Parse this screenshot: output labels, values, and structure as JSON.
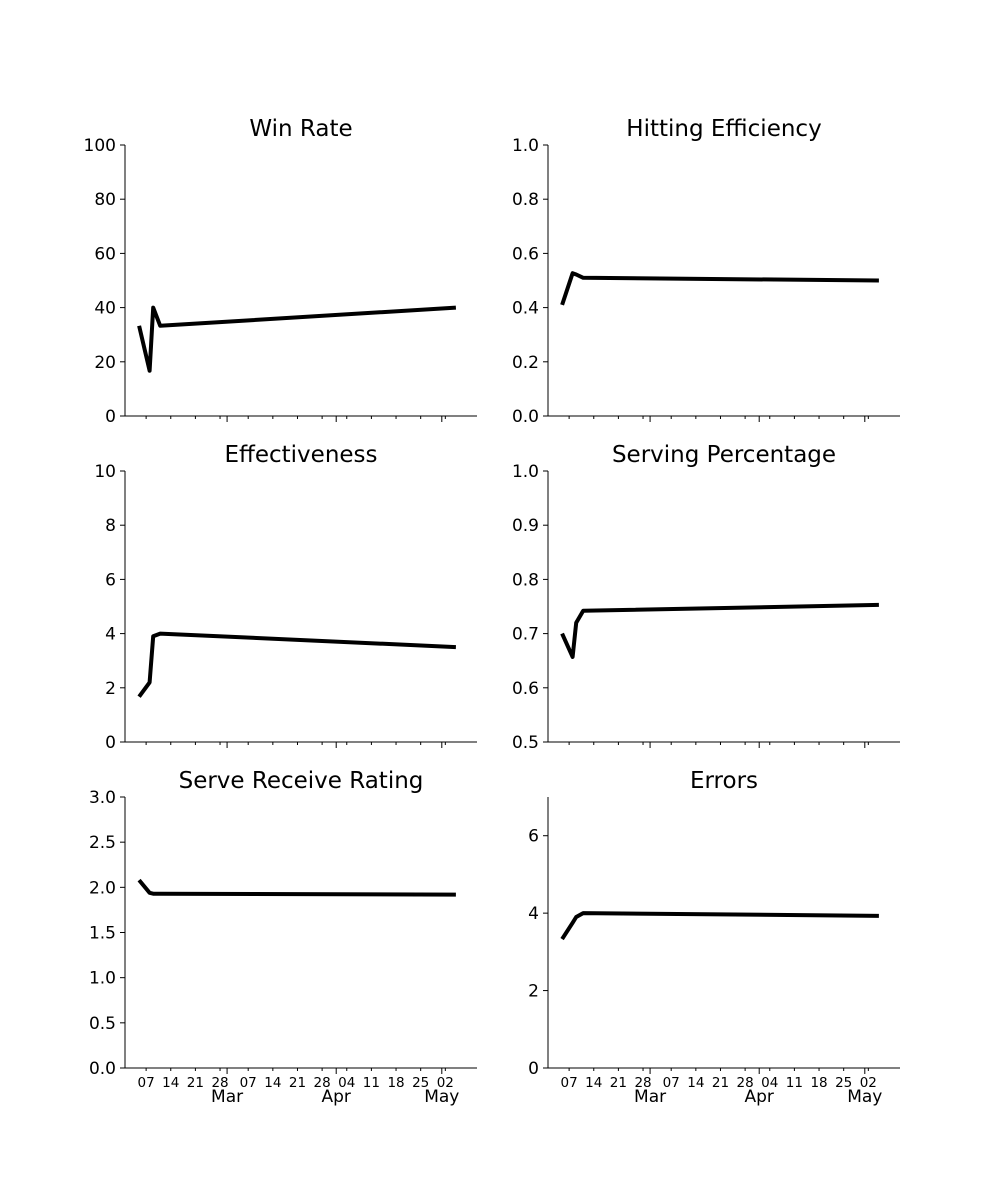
{
  "chart_data": [
    {
      "type": "line",
      "title": "Win Rate",
      "ylim": [
        0,
        100
      ],
      "yticks": [
        0,
        20,
        40,
        60,
        80,
        100
      ],
      "x": [
        "2024-02-05",
        "2024-02-08",
        "2024-02-09",
        "2024-02-11",
        "2024-05-05"
      ],
      "series": [
        {
          "values": [
            33.3,
            16.7,
            40.0,
            33.3,
            40.0
          ]
        }
      ],
      "grid": false
    },
    {
      "type": "line",
      "title": "Hitting Efficiency",
      "ylim": [
        0.0,
        1.0
      ],
      "yticks": [
        "0.0",
        "0.2",
        "0.4",
        "0.6",
        "0.8",
        "1.0"
      ],
      "x": [
        "2024-02-05",
        "2024-02-08",
        "2024-02-09",
        "2024-02-11",
        "2024-05-05"
      ],
      "series": [
        {
          "values": [
            0.41,
            0.527,
            0.522,
            0.51,
            0.5
          ]
        }
      ],
      "grid": false
    },
    {
      "type": "line",
      "title": "Effectiveness",
      "ylim": [
        0,
        10
      ],
      "yticks": [
        0,
        2,
        4,
        6,
        8,
        10
      ],
      "x": [
        "2024-02-05",
        "2024-02-08",
        "2024-02-09",
        "2024-02-11",
        "2024-05-05"
      ],
      "series": [
        {
          "values": [
            1.67,
            2.2,
            3.9,
            4.0,
            3.5
          ]
        }
      ],
      "grid": false
    },
    {
      "type": "line",
      "title": "Serving Percentage",
      "ylim": [
        0.5,
        1.0
      ],
      "yticks": [
        "0.5",
        "0.6",
        "0.7",
        "0.8",
        "0.9",
        "1.0"
      ],
      "x": [
        "2024-02-05",
        "2024-02-08",
        "2024-02-09",
        "2024-02-11",
        "2024-05-05"
      ],
      "series": [
        {
          "values": [
            0.7,
            0.657,
            0.72,
            0.742,
            0.753
          ]
        }
      ],
      "grid": false
    },
    {
      "type": "line",
      "title": "Serve Receive Rating",
      "ylim": [
        0.0,
        3.0
      ],
      "yticks": [
        "0.0",
        "0.5",
        "1.0",
        "1.5",
        "2.0",
        "2.5",
        "3.0"
      ],
      "x": [
        "2024-02-05",
        "2024-02-08",
        "2024-02-09",
        "2024-02-11",
        "2024-05-05"
      ],
      "series": [
        {
          "values": [
            2.08,
            1.94,
            1.93,
            1.93,
            1.92
          ]
        }
      ],
      "grid": false
    },
    {
      "type": "line",
      "title": "Errors",
      "ylim": [
        0,
        7
      ],
      "yticks": [
        0,
        2,
        4,
        6
      ],
      "x": [
        "2024-02-05",
        "2024-02-08",
        "2024-02-09",
        "2024-02-11",
        "2024-05-05"
      ],
      "series": [
        {
          "values": [
            3.33,
            3.75,
            3.9,
            4.0,
            3.93
          ]
        }
      ],
      "grid": false
    }
  ],
  "x_axis": {
    "range": [
      "2024-02-01",
      "2024-05-11"
    ],
    "day_ticks": [
      {
        "date": "2024-02-07",
        "label": "07"
      },
      {
        "date": "2024-02-14",
        "label": "14"
      },
      {
        "date": "2024-02-21",
        "label": "21"
      },
      {
        "date": "2024-02-28",
        "label": "28"
      },
      {
        "date": "2024-03-07",
        "label": "07"
      },
      {
        "date": "2024-03-14",
        "label": "14"
      },
      {
        "date": "2024-03-21",
        "label": "21"
      },
      {
        "date": "2024-03-28",
        "label": "28"
      },
      {
        "date": "2024-04-04",
        "label": "04"
      },
      {
        "date": "2024-04-11",
        "label": "11"
      },
      {
        "date": "2024-04-18",
        "label": "18"
      },
      {
        "date": "2024-04-25",
        "label": "25"
      },
      {
        "date": "2024-05-02",
        "label": "02"
      }
    ],
    "month_ticks": [
      {
        "date": "2024-03-01",
        "label": "Mar"
      },
      {
        "date": "2024-04-01",
        "label": "Apr"
      },
      {
        "date": "2024-05-01",
        "label": "May"
      }
    ]
  },
  "colors": {
    "line": "#000000",
    "axis": "#000000",
    "background": "#ffffff"
  }
}
